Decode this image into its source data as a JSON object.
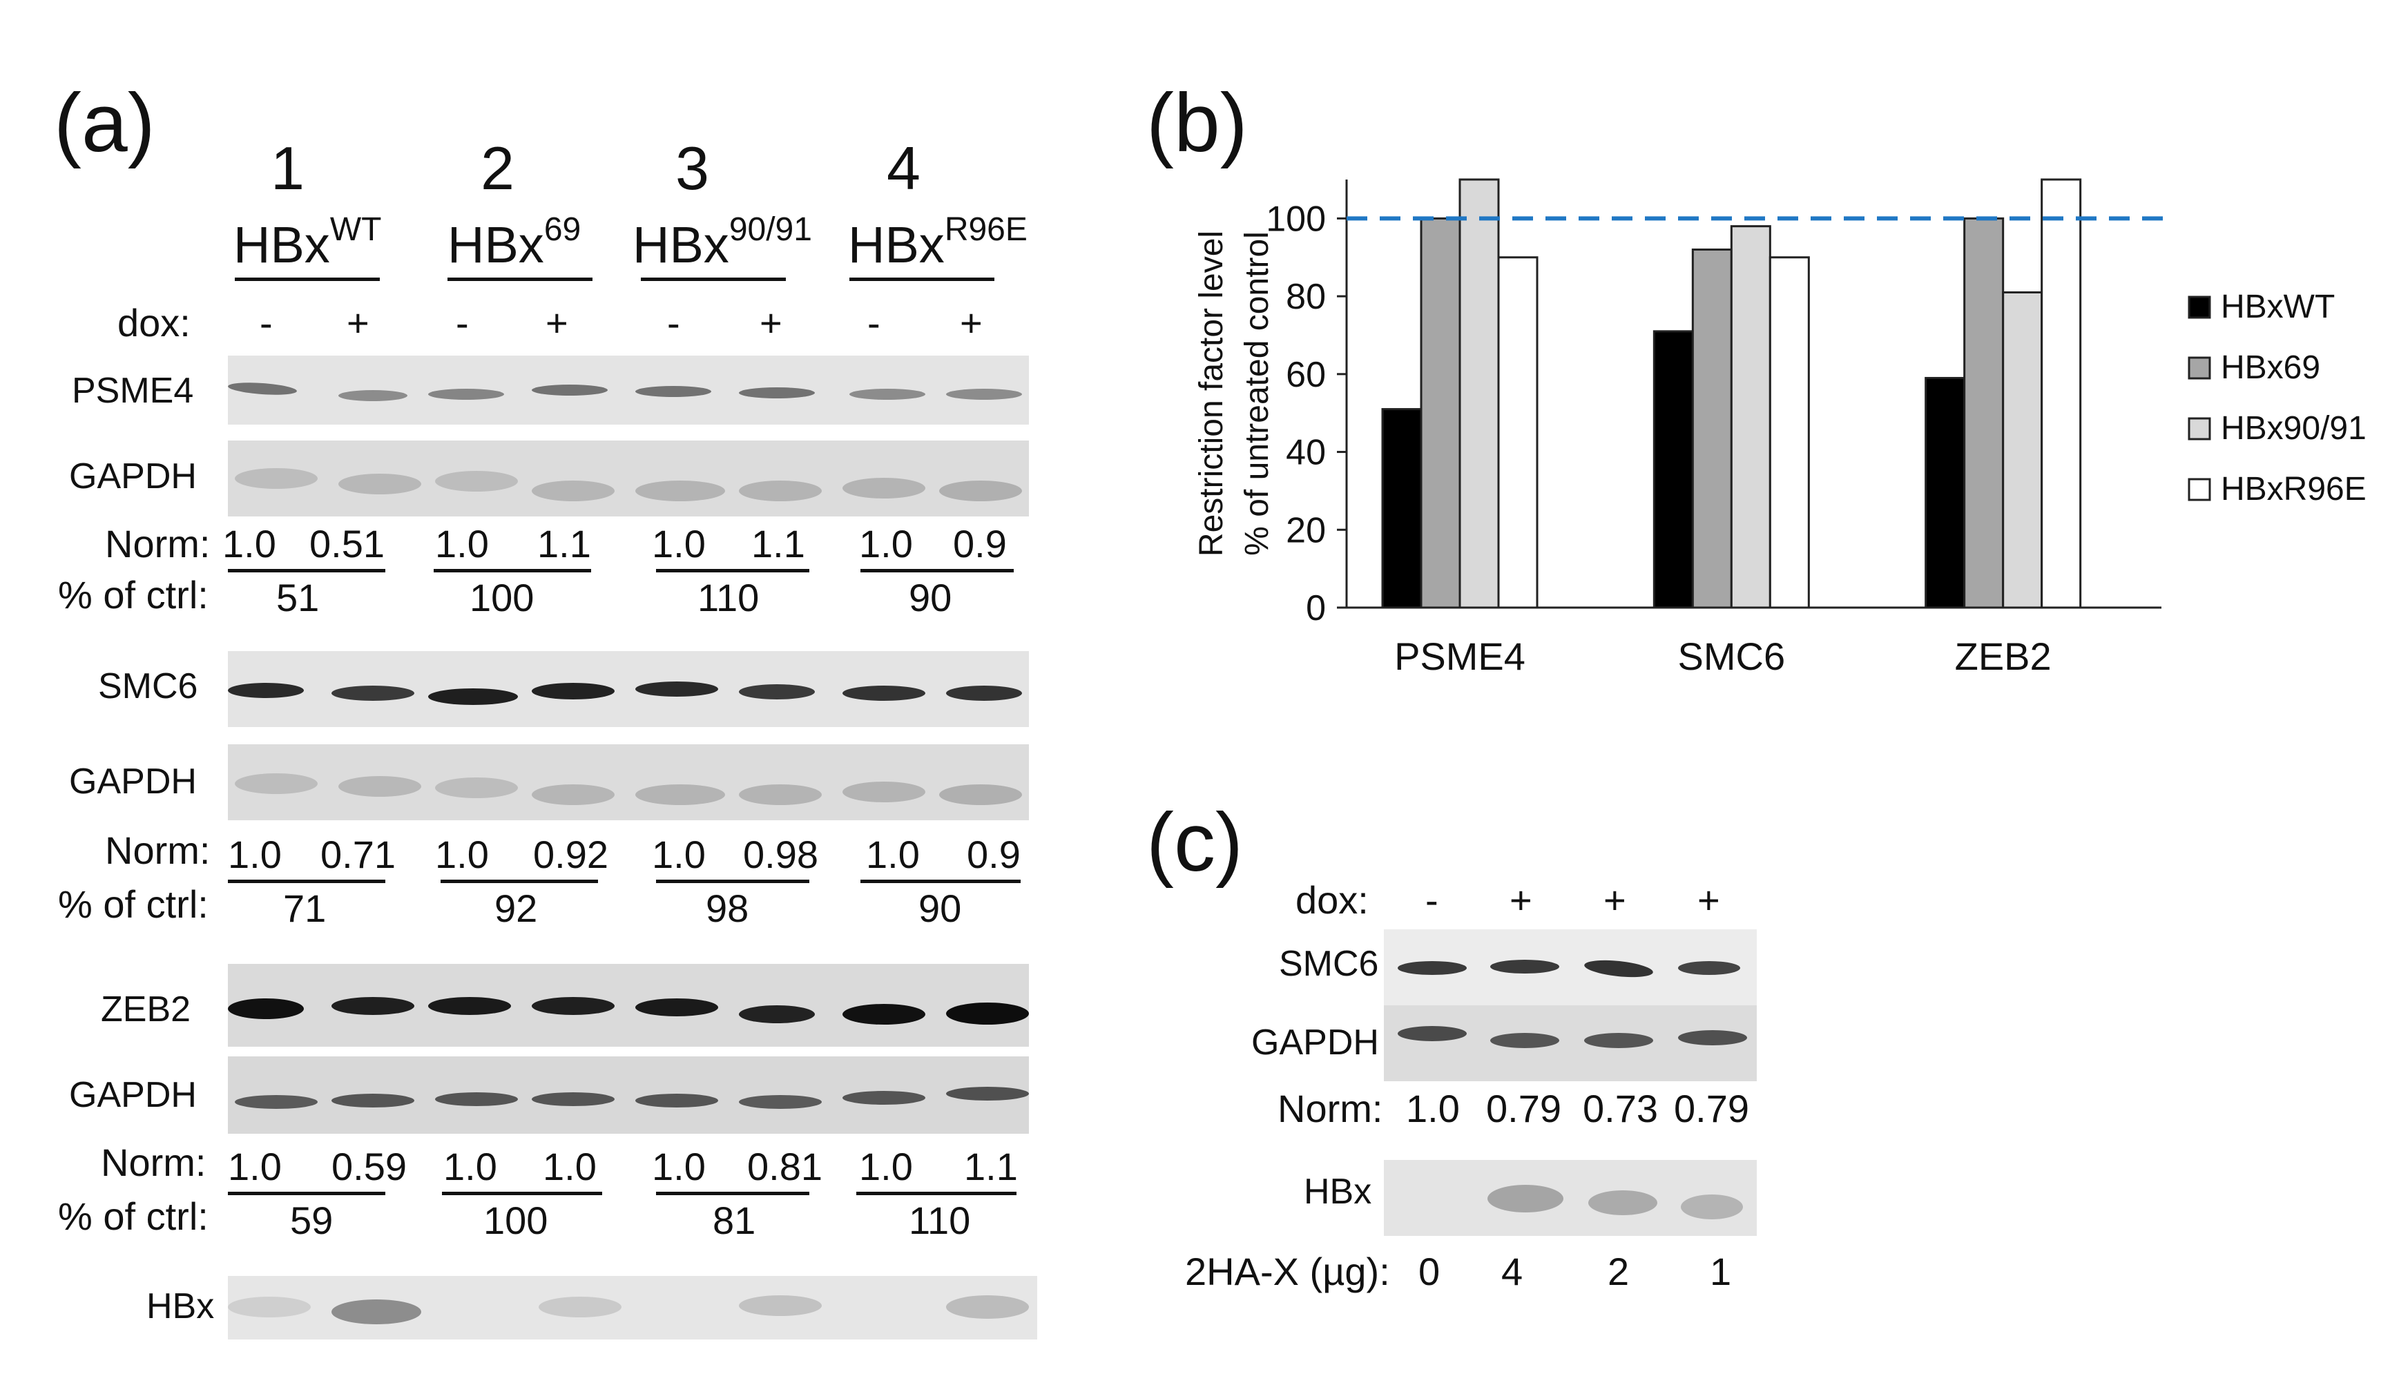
{
  "panel_a": {
    "label": "(a)",
    "lanes": [
      {
        "num": "1",
        "name": "HBx",
        "sup": "WT"
      },
      {
        "num": "2",
        "name": "HBx",
        "sup": "69"
      },
      {
        "num": "3",
        "name": "HBx",
        "sup": "90/91"
      },
      {
        "num": "4",
        "name": "HBx",
        "sup": "R96E"
      }
    ],
    "dox_label": "dox:",
    "dox_signs": [
      "-",
      "+",
      "-",
      "+",
      "-",
      "+",
      "-",
      "+"
    ],
    "blocks": [
      {
        "target": "PSME4",
        "loading": "GAPDH",
        "norm_label": "Norm:",
        "norm": [
          "1.0",
          "0.51",
          "1.0",
          "1.1",
          "1.0",
          "1.1",
          "1.0",
          "0.9"
        ],
        "pct_label": "% of ctrl:",
        "pct": [
          "51",
          "100",
          "110",
          "90"
        ]
      },
      {
        "target": "SMC6",
        "loading": "GAPDH",
        "norm_label": "Norm:",
        "norm": [
          "1.0",
          "0.71",
          "1.0",
          "0.92",
          "1.0",
          "0.98",
          "1.0",
          "0.9"
        ],
        "pct_label": "% of ctrl:",
        "pct": [
          "71",
          "92",
          "98",
          "90"
        ]
      },
      {
        "target": "ZEB2",
        "loading": "GAPDH",
        "norm_label": "Norm:",
        "norm": [
          "1.0",
          "0.59",
          "1.0",
          "1.0",
          "1.0",
          "0.81",
          "1.0",
          "1.1"
        ],
        "pct_label": "% of ctrl:",
        "pct": [
          "59",
          "100",
          "81",
          "110"
        ]
      }
    ],
    "hbx_label": "HBx"
  },
  "panel_b": {
    "label": "(b)"
  },
  "chart_data": {
    "type": "bar",
    "title": "",
    "ylabel": "Restriction factor level % of untreated control",
    "ylabel_lines": [
      "Restriction factor level",
      "% of untreated  control"
    ],
    "xlabel": "",
    "categories": [
      "PSME4",
      "SMC6",
      "ZEB2"
    ],
    "series": [
      {
        "name": "HBxWT",
        "values": [
          51,
          71,
          59
        ],
        "color": "#000000"
      },
      {
        "name": "HBx69",
        "values": [
          100,
          92,
          100
        ],
        "color": "#a6a6a6"
      },
      {
        "name": "HBx90/91",
        "values": [
          110,
          98,
          81
        ],
        "color": "#d9d9d9"
      },
      {
        "name": "HBxR96E",
        "values": [
          90,
          90,
          110
        ],
        "color": "#ffffff"
      }
    ],
    "yticks": [
      "0",
      "20",
      "40",
      "60",
      "80",
      "100"
    ],
    "ylim": [
      0,
      110
    ],
    "reference_line": {
      "value": 100,
      "style": "dashed",
      "color": "#1f77c4"
    },
    "legend_position": "right",
    "grid": false
  },
  "panel_c": {
    "label": "(c)",
    "dox_label": "dox:",
    "dox_signs": [
      "-",
      "+",
      "+",
      "+"
    ],
    "target": "SMC6",
    "loading": "GAPDH",
    "norm_label": "Norm:",
    "norm": [
      "1.0",
      "0.79",
      "0.73",
      "0.79"
    ],
    "hbx_label": "HBx",
    "dose_label": "2HA-X (µg):",
    "doses": [
      "0",
      "4",
      "2",
      "1"
    ]
  }
}
